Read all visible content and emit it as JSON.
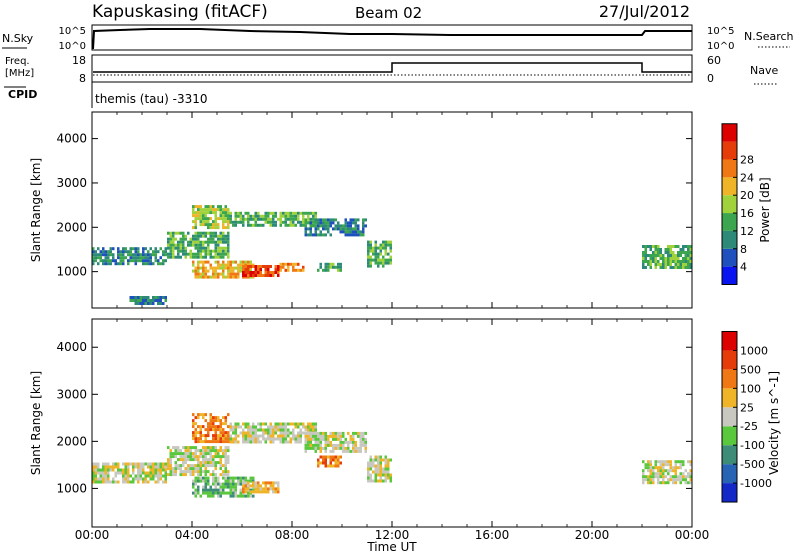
{
  "header": {
    "station": "Kapuskasing (fitACF)",
    "beam": "Beam 02",
    "date": "27/Jul/2012"
  },
  "nsky_panel": {
    "left_label": "N.Sky",
    "right_label": "N.Search",
    "left_ticks": [
      "10^5",
      "10^0"
    ],
    "right_ticks": [
      "10^5",
      "10^0"
    ]
  },
  "freq_panel": {
    "left_label_line1": "Freq.",
    "left_label_line2": "[MHz]",
    "right_label": "Nave",
    "left_ticks": [
      "18",
      "8"
    ],
    "right_ticks": [
      "60",
      "0"
    ]
  },
  "cpid": {
    "label": "CPID",
    "text": "themis (tau) -3310"
  },
  "chart_data": [
    {
      "type": "heatmap",
      "name": "power",
      "ylabel": "Slant Range [km]",
      "yticks": [
        1000,
        2000,
        3000,
        4000
      ],
      "ylim": [
        180,
        4600
      ],
      "xlim": [
        0,
        24
      ],
      "colorbar": {
        "label": "Power [dB]",
        "ticks": [
          "4",
          "8",
          "12",
          "16",
          "20",
          "24",
          "28"
        ],
        "colors": [
          "#0a14f0",
          "#1e50be",
          "#2d8a78",
          "#3ca550",
          "#a0d23c",
          "#f0b428",
          "#f07814",
          "#e63c0a",
          "#dc0000"
        ]
      },
      "regions": [
        {
          "x0": 0.0,
          "x1": 3.0,
          "y0": 1150,
          "y1": 1550,
          "level": 2
        },
        {
          "x0": 3.0,
          "x1": 5.5,
          "y0": 1300,
          "y1": 1900,
          "level": 3
        },
        {
          "x0": 4.0,
          "x1": 5.5,
          "y0": 2000,
          "y1": 2500,
          "level": 4
        },
        {
          "x0": 5.5,
          "x1": 9.0,
          "y0": 2050,
          "y1": 2350,
          "level": 3
        },
        {
          "x0": 8.5,
          "x1": 11.0,
          "y0": 1800,
          "y1": 2200,
          "level": 2
        },
        {
          "x0": 11.0,
          "x1": 12.0,
          "y0": 1150,
          "y1": 1700,
          "level": 3
        },
        {
          "x0": 4.0,
          "x1": 6.5,
          "y0": 850,
          "y1": 1250,
          "level": 5
        },
        {
          "x0": 6.0,
          "x1": 7.5,
          "y0": 900,
          "y1": 1150,
          "level": 7
        },
        {
          "x0": 7.5,
          "x1": 8.5,
          "y0": 1000,
          "y1": 1200,
          "level": 6
        },
        {
          "x0": 9.0,
          "x1": 10.0,
          "y0": 1000,
          "y1": 1200,
          "level": 3
        },
        {
          "x0": 1.5,
          "x1": 3.0,
          "y0": 250,
          "y1": 450,
          "level": 2
        },
        {
          "x0": 22.0,
          "x1": 24.0,
          "y0": 1100,
          "y1": 1600,
          "level": 3
        }
      ]
    },
    {
      "type": "heatmap",
      "name": "velocity",
      "ylabel": "Slant Range [km]",
      "xlabel": "Time UT",
      "yticks": [
        1000,
        2000,
        3000,
        4000
      ],
      "ylim": [
        180,
        4600
      ],
      "xlim": [
        0,
        24
      ],
      "xticks": [
        "00:00",
        "04:00",
        "08:00",
        "12:00",
        "16:00",
        "20:00",
        "00:00"
      ],
      "colorbar": {
        "label": "Velocity [m s^-1]",
        "ticks": [
          "1000",
          "500",
          "100",
          "25",
          "-25",
          "-100",
          "-500",
          "-1000"
        ],
        "colors": [
          "#1428c8",
          "#2864b4",
          "#3c8c78",
          "#5ac83c",
          "#c8c8c0",
          "#f0b428",
          "#f07814",
          "#e63c0a",
          "#dc0000"
        ]
      },
      "regions": [
        {
          "x0": 0.0,
          "x1": 3.0,
          "y0": 1150,
          "y1": 1550,
          "level": 4
        },
        {
          "x0": 3.0,
          "x1": 5.5,
          "y0": 1300,
          "y1": 1900,
          "level": 4
        },
        {
          "x0": 4.0,
          "x1": 5.5,
          "y0": 2000,
          "y1": 2600,
          "level": 6
        },
        {
          "x0": 5.5,
          "x1": 9.0,
          "y0": 2000,
          "y1": 2400,
          "level": 4
        },
        {
          "x0": 8.5,
          "x1": 11.0,
          "y0": 1800,
          "y1": 2200,
          "level": 4
        },
        {
          "x0": 11.0,
          "x1": 12.0,
          "y0": 1150,
          "y1": 1700,
          "level": 4
        },
        {
          "x0": 4.0,
          "x1": 6.5,
          "y0": 850,
          "y1": 1250,
          "level": 3
        },
        {
          "x0": 6.0,
          "x1": 7.5,
          "y0": 900,
          "y1": 1150,
          "level": 5
        },
        {
          "x0": 9.0,
          "x1": 10.0,
          "y0": 1500,
          "y1": 1700,
          "level": 6
        },
        {
          "x0": 22.0,
          "x1": 24.0,
          "y0": 1100,
          "y1": 1600,
          "level": 4
        }
      ]
    }
  ]
}
